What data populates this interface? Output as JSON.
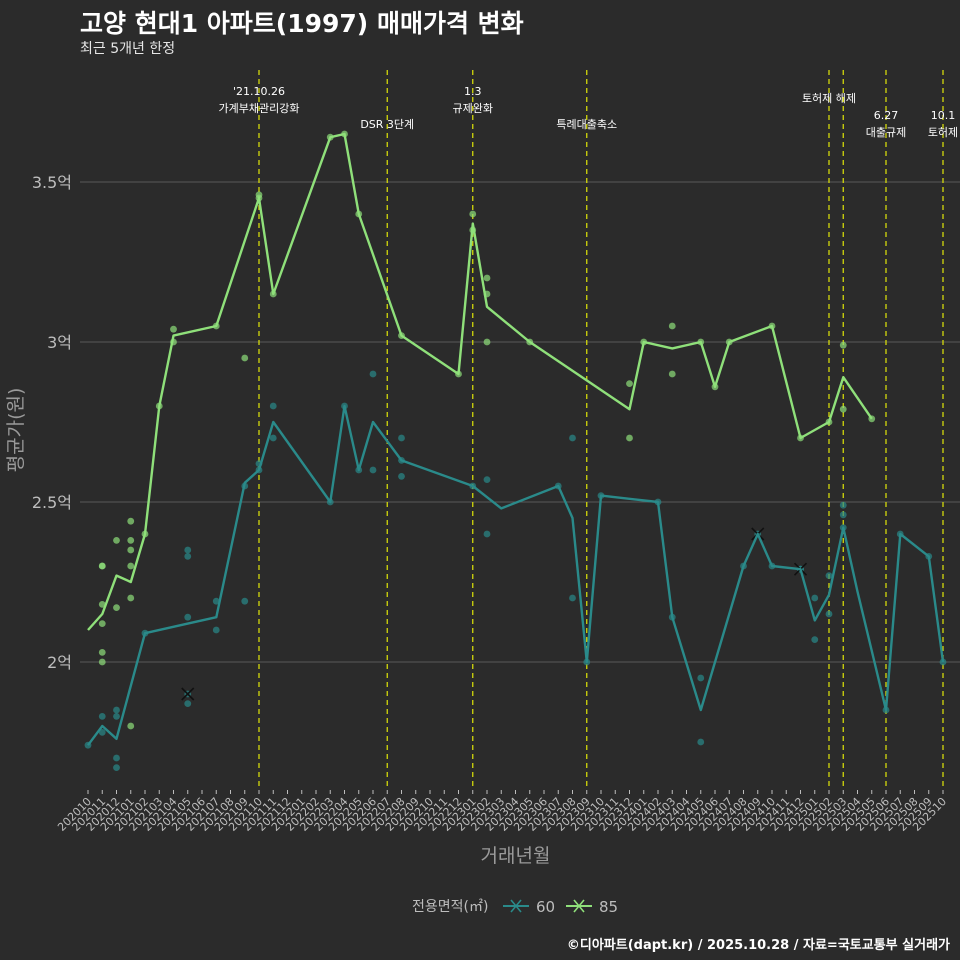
{
  "header": {
    "title": "고양 현대1 아파트(1997) 매매가격 변화",
    "subtitle": "최근 5개년 한정",
    "caption": "©디아파트(dapt.kr) / 2025.10.28 / 자료=국토교통부 실거래가"
  },
  "colors": {
    "background": "#2b2b2b",
    "grid": "#5a5a5a",
    "event_line": "#d4d90a",
    "series_60": "#2a8a8a",
    "series_85": "#8fe07a",
    "axis_text": "#bdbdbd"
  },
  "chart_data": {
    "type": "line",
    "title": "고양 현대1 아파트(1997) 매매가격 변화",
    "xlabel": "거래년월",
    "ylabel": "평균가(원)",
    "ylim": [
      1.6,
      3.85
    ],
    "yticks": [
      2.0,
      2.5,
      3.0,
      3.5
    ],
    "ytick_labels": [
      "2억",
      "2.5억",
      "3억",
      "3.5억"
    ],
    "legend_title": "전용면적(㎡)",
    "legend_position": "bottom",
    "categories": [
      "202010",
      "202011",
      "202012",
      "202101",
      "202102",
      "202103",
      "202104",
      "202105",
      "202106",
      "202107",
      "202108",
      "202109",
      "202110",
      "202111",
      "202112",
      "202201",
      "202202",
      "202203",
      "202204",
      "202205",
      "202206",
      "202207",
      "202208",
      "202209",
      "202210",
      "202211",
      "202212",
      "202301",
      "202302",
      "202303",
      "202304",
      "202305",
      "202306",
      "202307",
      "202308",
      "202309",
      "202310",
      "202311",
      "202312",
      "202401",
      "202402",
      "202403",
      "202404",
      "202405",
      "202406",
      "202407",
      "202408",
      "202409",
      "202410",
      "202411",
      "202412",
      "202501",
      "202502",
      "202503",
      "202504",
      "202505",
      "202506",
      "202507",
      "202508",
      "202509",
      "202510"
    ],
    "events": [
      {
        "month": "202110",
        "label": "'21.10.26\n가계부채관리강화",
        "row": 1
      },
      {
        "month": "202207",
        "label": "DSR 3단계",
        "row": 2
      },
      {
        "month": "202301",
        "label": "1.3\n규제완화",
        "row": 1
      },
      {
        "month": "202309",
        "label": "특례대출축소",
        "row": 2
      },
      {
        "month": "202502",
        "label": "토허제 해제",
        "row": 0
      },
      {
        "month": "202503",
        "label": "",
        "row": 0
      },
      {
        "month": "202506",
        "label": "6.27\n대출규제",
        "row": 3
      },
      {
        "month": "202510",
        "label": "10.1\n토허제",
        "row": 3
      }
    ],
    "series": [
      {
        "name": "60",
        "line": [
          [
            "202010",
            1.74
          ],
          [
            "202011",
            1.8
          ],
          [
            "202012",
            1.76
          ],
          [
            "202102",
            2.09
          ],
          [
            "202105",
            2.12
          ],
          [
            "202107",
            2.14
          ],
          [
            "202109",
            2.56
          ],
          [
            "202110",
            2.6
          ],
          [
            "202111",
            2.75
          ],
          [
            "202203",
            2.5
          ],
          [
            "202204",
            2.8
          ],
          [
            "202205",
            2.6
          ],
          [
            "202206",
            2.75
          ],
          [
            "202208",
            2.63
          ],
          [
            "202301",
            2.55
          ],
          [
            "202303",
            2.48
          ],
          [
            "202307",
            2.55
          ],
          [
            "202308",
            2.45
          ],
          [
            "202309",
            2.0
          ],
          [
            "202310",
            2.52
          ],
          [
            "202402",
            2.5
          ],
          [
            "202403",
            2.14
          ],
          [
            "202405",
            1.85
          ],
          [
            "202408",
            2.3
          ],
          [
            "202409",
            2.4
          ],
          [
            "202410",
            2.3
          ],
          [
            "202412",
            2.29
          ],
          [
            "202501",
            2.13
          ],
          [
            "202502",
            2.21
          ],
          [
            "202503",
            2.42
          ],
          [
            "202504",
            2.22
          ],
          [
            "202506",
            1.85
          ],
          [
            "202507",
            2.4
          ],
          [
            "202509",
            2.33
          ],
          [
            "202510",
            2.0
          ]
        ],
        "points": [
          [
            "202010",
            1.74
          ],
          [
            "202011",
            1.78
          ],
          [
            "202011",
            1.83
          ],
          [
            "202012",
            1.67
          ],
          [
            "202012",
            1.7
          ],
          [
            "202012",
            1.83
          ],
          [
            "202012",
            1.85
          ],
          [
            "202102",
            2.09
          ],
          [
            "202105",
            1.87
          ],
          [
            "202105",
            2.14
          ],
          [
            "202105",
            2.33
          ],
          [
            "202105",
            2.35
          ],
          [
            "202107",
            2.1
          ],
          [
            "202107",
            2.19
          ],
          [
            "202109",
            2.19
          ],
          [
            "202109",
            2.55
          ],
          [
            "202110",
            2.6
          ],
          [
            "202110",
            2.62
          ],
          [
            "202111",
            2.7
          ],
          [
            "202111",
            2.8
          ],
          [
            "202203",
            2.5
          ],
          [
            "202204",
            2.8
          ],
          [
            "202205",
            2.6
          ],
          [
            "202206",
            2.6
          ],
          [
            "202206",
            2.9
          ],
          [
            "202208",
            2.58
          ],
          [
            "202208",
            2.63
          ],
          [
            "202208",
            2.7
          ],
          [
            "202301",
            2.55
          ],
          [
            "202302",
            2.4
          ],
          [
            "202302",
            2.57
          ],
          [
            "202307",
            2.55
          ],
          [
            "202308",
            2.2
          ],
          [
            "202308",
            2.7
          ],
          [
            "202309",
            2.0
          ],
          [
            "202310",
            2.52
          ],
          [
            "202402",
            2.5
          ],
          [
            "202403",
            2.14
          ],
          [
            "202405",
            1.75
          ],
          [
            "202405",
            1.95
          ],
          [
            "202408",
            2.3
          ],
          [
            "202410",
            2.3
          ],
          [
            "202412",
            2.29
          ],
          [
            "202501",
            2.07
          ],
          [
            "202501",
            2.2
          ],
          [
            "202502",
            2.15
          ],
          [
            "202502",
            2.27
          ],
          [
            "202503",
            2.42
          ],
          [
            "202503",
            2.46
          ],
          [
            "202503",
            2.49
          ],
          [
            "202506",
            1.85
          ],
          [
            "202507",
            2.4
          ],
          [
            "202509",
            2.33
          ],
          [
            "202510",
            2.0
          ]
        ],
        "crosses": [
          [
            "202105",
            1.9
          ],
          [
            "202409",
            2.4
          ],
          [
            "202412",
            2.29
          ]
        ]
      },
      {
        "name": "85",
        "line": [
          [
            "202010",
            2.1
          ],
          [
            "202011",
            2.15
          ],
          [
            "202012",
            2.27
          ],
          [
            "202101",
            2.25
          ],
          [
            "202102",
            2.4
          ],
          [
            "202103",
            2.8
          ],
          [
            "202104",
            3.02
          ],
          [
            "202107",
            3.05
          ],
          [
            "202110",
            3.45
          ],
          [
            "202111",
            3.15
          ],
          [
            "202203",
            3.64
          ],
          [
            "202204",
            3.65
          ],
          [
            "202205",
            3.4
          ],
          [
            "202208",
            3.02
          ],
          [
            "202212",
            2.9
          ],
          [
            "202301",
            3.37
          ],
          [
            "202302",
            3.11
          ],
          [
            "202305",
            3.0
          ],
          [
            "202312",
            2.79
          ],
          [
            "202401",
            3.0
          ],
          [
            "202403",
            2.98
          ],
          [
            "202405",
            3.0
          ],
          [
            "202406",
            2.86
          ],
          [
            "202407",
            3.0
          ],
          [
            "202410",
            3.05
          ],
          [
            "202412",
            2.7
          ],
          [
            "202502",
            2.75
          ],
          [
            "202503",
            2.89
          ],
          [
            "202505",
            2.76
          ]
        ],
        "points": [
          [
            "202011",
            2.0
          ],
          [
            "202011",
            2.03
          ],
          [
            "202011",
            2.12
          ],
          [
            "202011",
            2.18
          ],
          [
            "202011",
            2.3
          ],
          [
            "202011",
            2.3
          ],
          [
            "202012",
            2.17
          ],
          [
            "202012",
            2.38
          ],
          [
            "202101",
            1.8
          ],
          [
            "202101",
            2.2
          ],
          [
            "202101",
            2.3
          ],
          [
            "202101",
            2.35
          ],
          [
            "202101",
            2.38
          ],
          [
            "202101",
            2.44
          ],
          [
            "202102",
            2.4
          ],
          [
            "202103",
            2.8
          ],
          [
            "202104",
            3.0
          ],
          [
            "202104",
            3.04
          ],
          [
            "202107",
            3.05
          ],
          [
            "202109",
            2.95
          ],
          [
            "202110",
            3.45
          ],
          [
            "202110",
            3.46
          ],
          [
            "202111",
            3.15
          ],
          [
            "202203",
            3.64
          ],
          [
            "202204",
            3.65
          ],
          [
            "202205",
            3.4
          ],
          [
            "202208",
            3.02
          ],
          [
            "202212",
            2.9
          ],
          [
            "202301",
            3.35
          ],
          [
            "202301",
            3.4
          ],
          [
            "202302",
            3.0
          ],
          [
            "202302",
            3.15
          ],
          [
            "202302",
            3.2
          ],
          [
            "202305",
            3.0
          ],
          [
            "202312",
            2.7
          ],
          [
            "202312",
            2.87
          ],
          [
            "202401",
            3.0
          ],
          [
            "202403",
            2.9
          ],
          [
            "202403",
            3.05
          ],
          [
            "202405",
            3.0
          ],
          [
            "202406",
            2.86
          ],
          [
            "202407",
            3.0
          ],
          [
            "202410",
            3.05
          ],
          [
            "202412",
            2.7
          ],
          [
            "202502",
            2.75
          ],
          [
            "202503",
            2.79
          ],
          [
            "202503",
            2.99
          ],
          [
            "202505",
            2.76
          ]
        ],
        "crosses": []
      }
    ]
  }
}
